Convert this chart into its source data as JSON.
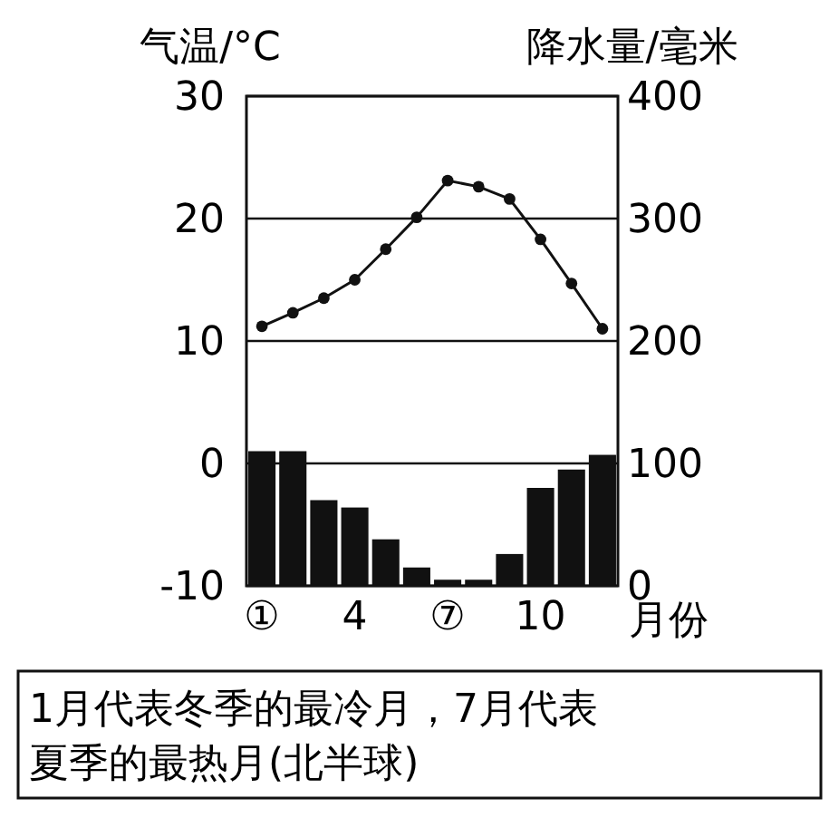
{
  "chart_data": {
    "type": "bar",
    "ylabel": "气温/°C",
    "y2label": "降水量/毫米",
    "xlabel": "月份",
    "categories": [
      "①",
      null,
      null,
      "4",
      null,
      null,
      "⑦",
      null,
      null,
      "10",
      null,
      null
    ],
    "series": [
      {
        "axis": "y2",
        "color": "#111111",
        "values": [
          110,
          110,
          70,
          64,
          38,
          15,
          5,
          5,
          26,
          80,
          95,
          107
        ]
      },
      {
        "type": "line",
        "axis": "y",
        "color": "#111111",
        "marker": "circle",
        "values": [
          11.2,
          12.3,
          13.5,
          15.0,
          17.5,
          20.1,
          23.1,
          22.6,
          21.6,
          18.3,
          14.7,
          11.0
        ]
      }
    ],
    "ylim": [
      -10,
      30
    ],
    "yticks": [
      -10,
      0,
      10,
      20,
      30
    ],
    "y2lim": [
      0,
      400
    ],
    "y2ticks": [
      0,
      100,
      200,
      300,
      400
    ],
    "grid": "y",
    "annotations": [
      "1月代表冬季的最冷月，7月代表夏季的最热月(北半球)"
    ]
  }
}
